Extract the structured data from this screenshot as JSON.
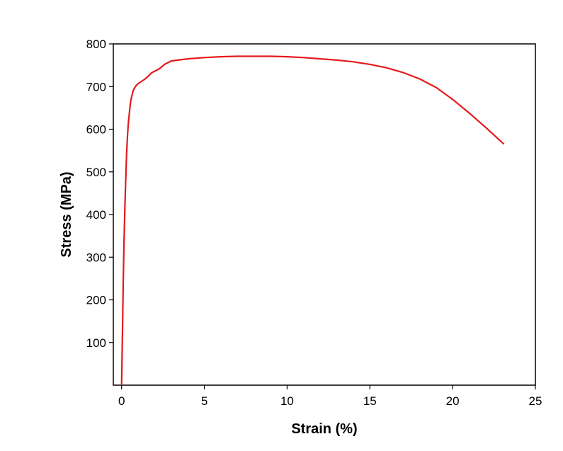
{
  "chart_data": {
    "type": "line",
    "xlabel": "Strain (%)",
    "ylabel": "Stress (MPa)",
    "xlim": [
      -0.5,
      25
    ],
    "ylim": [
      0,
      800
    ],
    "x_ticks": [
      0,
      5,
      10,
      15,
      20,
      25
    ],
    "y_ticks": [
      100,
      200,
      300,
      400,
      500,
      600,
      700,
      800
    ],
    "grid": false,
    "legend": "none",
    "line_color": "#e41a1c",
    "series": [
      {
        "x": [
          0.0,
          0.05,
          0.1,
          0.15,
          0.2,
          0.25,
          0.3,
          0.35,
          0.4,
          0.45,
          0.5,
          0.55,
          0.6,
          0.7,
          0.8,
          0.9,
          1.0,
          1.2,
          1.4,
          1.6,
          1.8,
          2.0,
          2.3,
          2.6,
          3.0,
          4.0,
          5.0,
          6.0,
          7.0,
          8.0,
          9.0,
          10.0,
          11.0,
          12.0,
          13.0,
          14.0,
          15.0,
          16.0,
          17.0,
          18.0,
          19.0,
          20.0,
          21.0,
          22.0,
          23.1
        ],
        "y": [
          0,
          120,
          240,
          340,
          420,
          480,
          540,
          580,
          610,
          630,
          650,
          665,
          675,
          690,
          698,
          703,
          707,
          712,
          717,
          724,
          732,
          736,
          742,
          752,
          760,
          765,
          768,
          770,
          771,
          771,
          771,
          770,
          768,
          765,
          762,
          758,
          752,
          744,
          733,
          718,
          698,
          670,
          638,
          604,
          565
        ]
      }
    ]
  }
}
